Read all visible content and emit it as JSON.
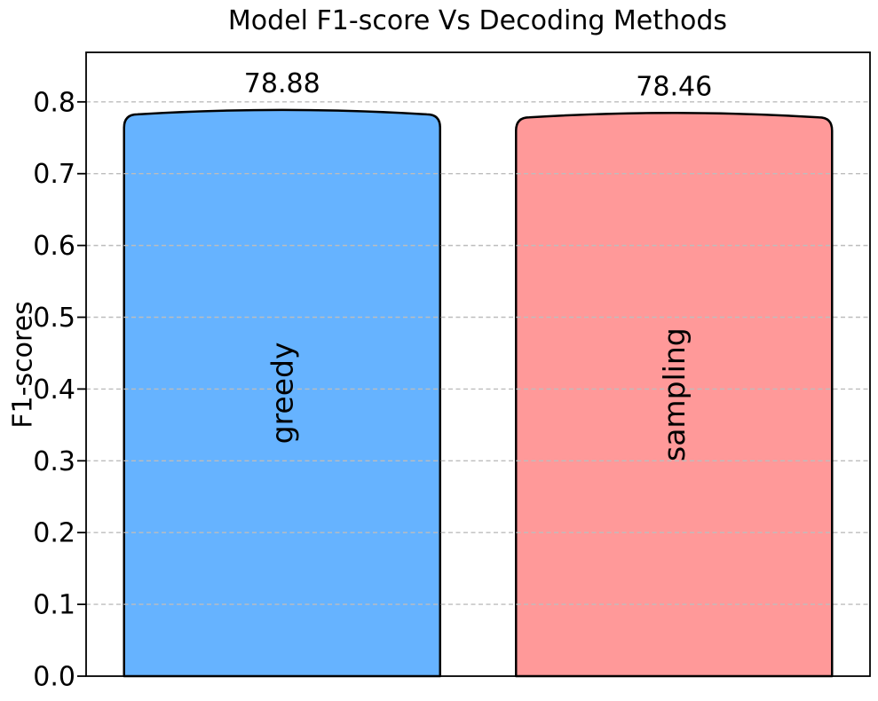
{
  "figure": {
    "background": "#ffffff"
  },
  "chart_data": {
    "type": "bar",
    "title": "Model F1-score Vs Decoding Methods",
    "xlabel": "",
    "ylabel": "F1-scores",
    "categories": [
      "greedy",
      "sampling"
    ],
    "values": [
      0.7888,
      0.7846
    ],
    "bar_value_labels": [
      "78.88",
      "78.46"
    ],
    "bar_colors": [
      "#66b3ff",
      "#ff9999"
    ],
    "bar_edge_color": "#000000",
    "text_color": "#000000",
    "ylim": [
      0,
      0.869
    ],
    "yticks": [
      0.0,
      0.1,
      0.2,
      0.3,
      0.4,
      0.5,
      0.6,
      0.7,
      0.8
    ],
    "ytick_labels": [
      "0.0",
      "0.1",
      "0.2",
      "0.3",
      "0.4",
      "0.5",
      "0.6",
      "0.7",
      "0.8"
    ],
    "grid": "horizontal-dashed-over-bars",
    "grid_color": "#bdbdbd",
    "spine_color": "#000000",
    "legend_position": "none",
    "x_tick_labels_visible": false
  }
}
